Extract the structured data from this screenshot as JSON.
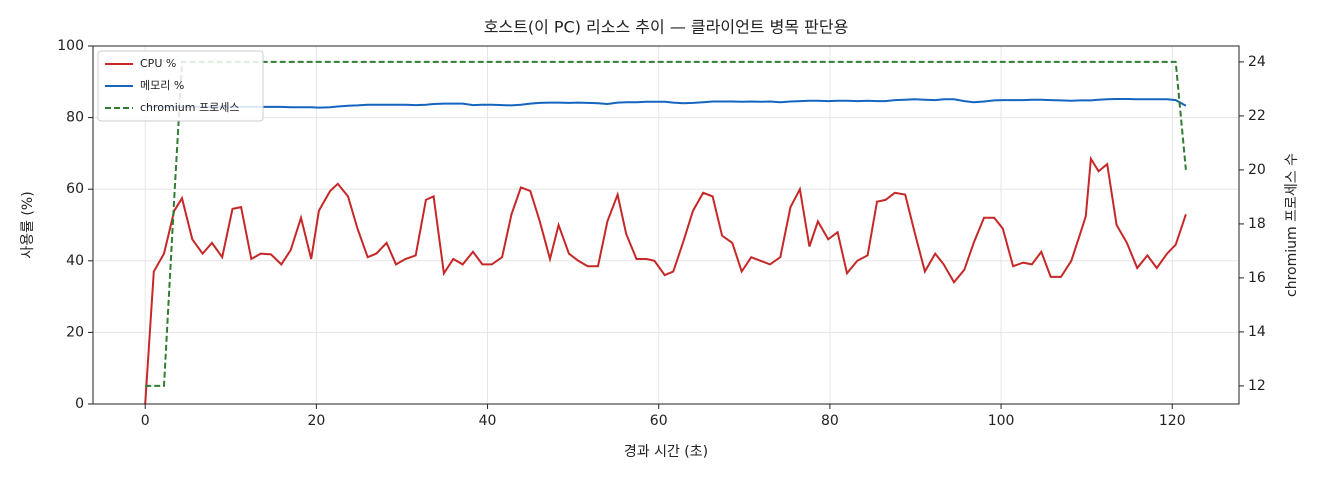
{
  "chart_data": {
    "type": "line",
    "title": "호스트(이 PC) 리소스 추이 — 클라이언트 병목 판단용",
    "x_label": "경과 시간 (초)",
    "y_label": "사용률 (%)",
    "y2_label": "chromium 프로세스 수",
    "xlim": [
      -6.1,
      127.8
    ],
    "xticks": [
      0,
      20,
      40,
      60,
      80,
      100,
      120
    ],
    "ylim": [
      0,
      100
    ],
    "yticks": [
      0,
      20,
      40,
      60,
      80,
      100
    ],
    "y2lim": [
      11.33,
      24.59
    ],
    "y2ticks": [
      12,
      14,
      16,
      18,
      20,
      22,
      24
    ],
    "grid": true,
    "legend": "upper left",
    "x": [
      0,
      1,
      2.2,
      3.4,
      4.3,
      5.5,
      6.7,
      7.8,
      9,
      10.2,
      11.2,
      12.4,
      13.5,
      14.7,
      15.9,
      17,
      18.2,
      19.4,
      20.3,
      21.6,
      22.5,
      23.7,
      24.8,
      26,
      27,
      28.2,
      29.3,
      30.4,
      31.6,
      32.8,
      33.7,
      34.9,
      36,
      37.1,
      38.3,
      39.4,
      40.5,
      41.7,
      42.8,
      43.9,
      45,
      46.1,
      47.3,
      48.3,
      49.5,
      50.6,
      51.7,
      52.9,
      54,
      55.2,
      56.2,
      57.4,
      58.6,
      59.5,
      60.7,
      61.7,
      62.9,
      64,
      65.2,
      66.3,
      67.4,
      68.6,
      69.7,
      70.8,
      71.9,
      73,
      74.2,
      75.4,
      76.5,
      77.6,
      78.6,
      79.8,
      80.9,
      82,
      83.2,
      84.4,
      85.5,
      86.5,
      87.6,
      88.8,
      89.9,
      91.1,
      92.3,
      93.3,
      94.5,
      95.7,
      96.8,
      98,
      99.2,
      100.2,
      101.4,
      102.6,
      103.6,
      104.7,
      105.8,
      107,
      108.2,
      109.3,
      109.9,
      110.5,
      111.4,
      112.4,
      113.5,
      114.7,
      115.9,
      117.1,
      118.2,
      119.4,
      120.4,
      121.6
    ],
    "series": [
      {
        "name": "CPU %",
        "color": "#c62828",
        "dash": false,
        "values": [
          0,
          37,
          42,
          54,
          57.5,
          46,
          42,
          45,
          41,
          54.5,
          55,
          40.5,
          42,
          41.8,
          39,
          43,
          52,
          40.5,
          54,
          59.5,
          61.5,
          58,
          49,
          41,
          42,
          45,
          39,
          40.5,
          41.5,
          57,
          58,
          36.5,
          40.5,
          39,
          42.5,
          39,
          39,
          41,
          53,
          60.5,
          59.5,
          51,
          40.5,
          50,
          42,
          40,
          38.5,
          38.5,
          51,
          58.5,
          47.5,
          40.5,
          40.5,
          40,
          36,
          37,
          45.5,
          54,
          59,
          58,
          47,
          45,
          37,
          41,
          40,
          39,
          41,
          55,
          60,
          44,
          51,
          46,
          48,
          36.5,
          40,
          41.5,
          56.5,
          57,
          59,
          58.5,
          48,
          37,
          42,
          39,
          34,
          37.5,
          45,
          52,
          52,
          49,
          38.5,
          39.5,
          39,
          42.5,
          35.5,
          35.5,
          40,
          48,
          52.5,
          68.5,
          65,
          67,
          50,
          45,
          38,
          41.5,
          38,
          42,
          44.5,
          53
        ]
      },
      {
        "name": "메모리 %",
        "color": "#1565c0",
        "dash": false,
        "values": [
          83,
          83,
          83,
          83,
          83,
          83,
          83,
          83,
          83,
          83,
          83,
          83,
          83,
          83,
          83,
          82.9,
          82.9,
          82.9,
          82.8,
          82.9,
          83.1,
          83.3,
          83.4,
          83.6,
          83.6,
          83.6,
          83.6,
          83.6,
          83.5,
          83.6,
          83.8,
          83.9,
          83.9,
          83.9,
          83.5,
          83.6,
          83.6,
          83.5,
          83.4,
          83.6,
          83.9,
          84.1,
          84.2,
          84.2,
          84.1,
          84.2,
          84.1,
          84,
          83.8,
          84.2,
          84.3,
          84.3,
          84.4,
          84.4,
          84.4,
          84.2,
          84,
          84.1,
          84.3,
          84.5,
          84.5,
          84.5,
          84.4,
          84.5,
          84.4,
          84.5,
          84.3,
          84.5,
          84.6,
          84.7,
          84.7,
          84.6,
          84.7,
          84.7,
          84.6,
          84.7,
          84.6,
          84.6,
          84.9,
          85,
          85.1,
          85,
          84.9,
          85.1,
          85.1,
          84.6,
          84.3,
          84.5,
          84.8,
          84.9,
          84.9,
          84.9,
          85,
          85,
          84.9,
          84.8,
          84.7,
          84.8,
          84.8,
          84.8,
          85,
          85.1,
          85.2,
          85.2,
          85.1,
          85.1,
          85.1,
          85.1,
          84.9,
          83.3
        ]
      },
      {
        "name": "chromium 프로세스",
        "color": "#2e7d32",
        "dash": true,
        "axis": "y2",
        "values": [
          12,
          12,
          12,
          19,
          24,
          24,
          24,
          24,
          24,
          24,
          24,
          24,
          24,
          24,
          24,
          24,
          24,
          24,
          24,
          24,
          24,
          24,
          24,
          24,
          24,
          24,
          24,
          24,
          24,
          24,
          24,
          24,
          24,
          24,
          24,
          24,
          24,
          24,
          24,
          24,
          24,
          24,
          24,
          24,
          24,
          24,
          24,
          24,
          24,
          24,
          24,
          24,
          24,
          24,
          24,
          24,
          24,
          24,
          24,
          24,
          24,
          24,
          24,
          24,
          24,
          24,
          24,
          24,
          24,
          24,
          24,
          24,
          24,
          24,
          24,
          24,
          24,
          24,
          24,
          24,
          24,
          24,
          24,
          24,
          24,
          24,
          24,
          24,
          24,
          24,
          24,
          24,
          24,
          24,
          24,
          24,
          24,
          24,
          24,
          24,
          24,
          24,
          24,
          24,
          24,
          24,
          24,
          24,
          24,
          20
        ]
      }
    ]
  }
}
